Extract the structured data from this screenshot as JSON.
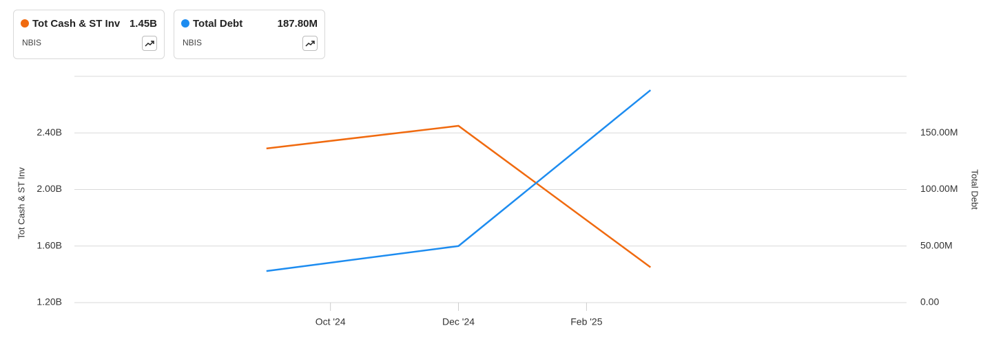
{
  "chart_data": {
    "type": "line",
    "x": [
      "2024-09",
      "2024-12",
      "2025-03"
    ],
    "xlim": [
      "2024-06",
      "2025-07"
    ],
    "xticks": [
      {
        "value": "2024-10",
        "label": "Oct '24"
      },
      {
        "value": "2024-12",
        "label": "Dec '24"
      },
      {
        "value": "2025-02",
        "label": "Feb '25"
      }
    ],
    "ylabel": "Tot Cash & ST Inv",
    "y2label": "Total Debt",
    "ylim": [
      1.2,
      2.8
    ],
    "yticks": [
      {
        "value": 1.2,
        "label": "1.20B"
      },
      {
        "value": 1.6,
        "label": "1.60B"
      },
      {
        "value": 2.0,
        "label": "2.00B"
      },
      {
        "value": 2.4,
        "label": "2.40B"
      }
    ],
    "y2lim": [
      0,
      200
    ],
    "y2ticks": [
      {
        "value": 0,
        "label": "0.00"
      },
      {
        "value": 50,
        "label": "50.00M"
      },
      {
        "value": 100,
        "label": "100.00M"
      },
      {
        "value": 150,
        "label": "150.00M"
      }
    ],
    "grid": true,
    "series": [
      {
        "name": "Tot Cash & ST Inv",
        "ticker": "NBIS",
        "color": "#f06a0f",
        "values": [
          2.29,
          2.45,
          1.45
        ],
        "value_labels": [
          null,
          null,
          "1.45B"
        ]
      },
      {
        "name": "Total Debt",
        "ticker": "NBIS",
        "color": "#1d8cf0",
        "axis": "y2",
        "values": [
          27.9,
          50,
          187.8
        ],
        "value_labels": [
          null,
          null,
          "187.80M"
        ]
      }
    ]
  }
}
